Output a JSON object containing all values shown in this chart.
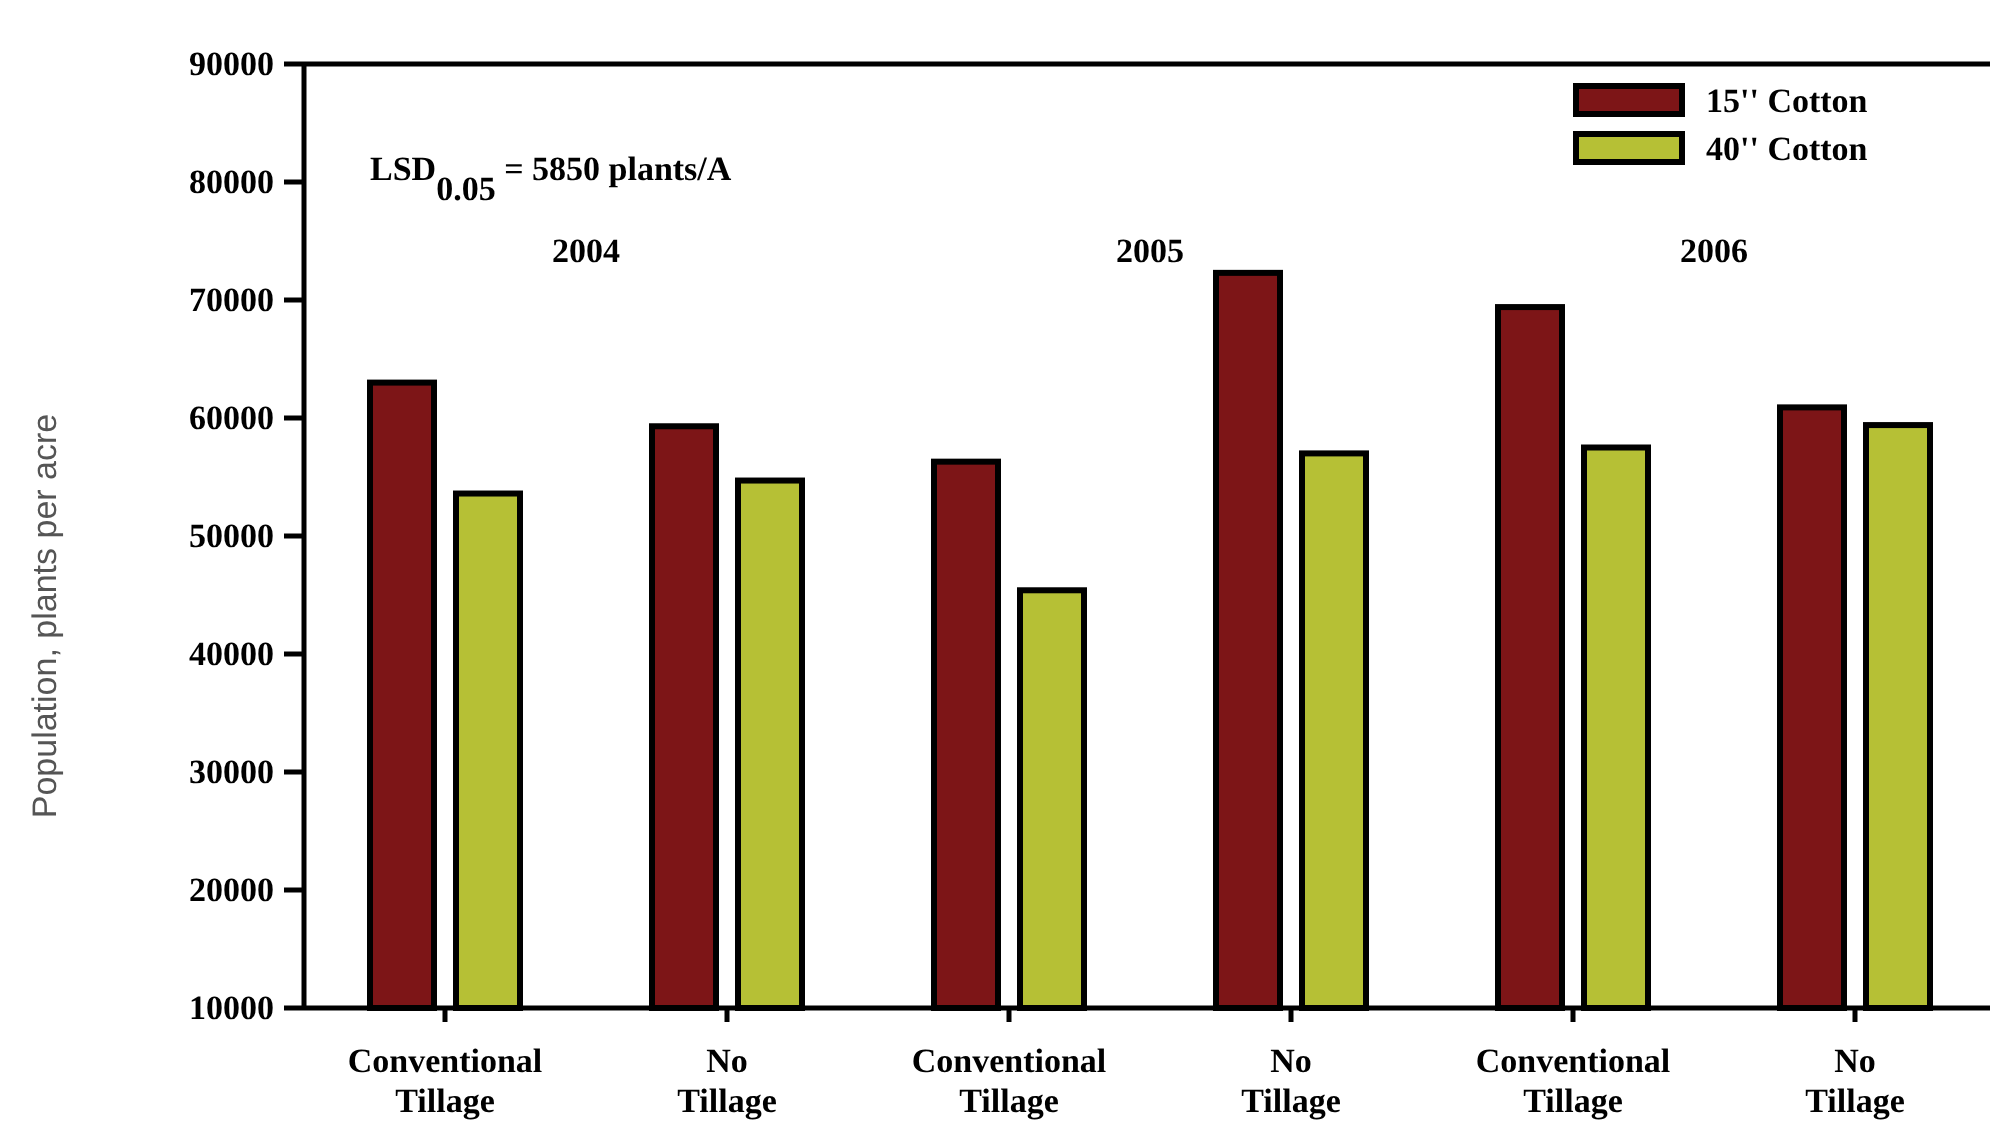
{
  "chart_data": {
    "type": "bar",
    "ylabel": "Population, plants per acre",
    "categories": [
      "Conventional Tillage",
      "No Tillage",
      "Conventional Tillage",
      "No Tillage",
      "Conventional Tillage",
      "No Tillage"
    ],
    "series": [
      {
        "name": "15'' Cotton",
        "color": "#7d1517",
        "values": [
          63000,
          59300,
          56300,
          72300,
          69400,
          60900
        ]
      },
      {
        "name": "40'' Cotton",
        "color": "#b6c035",
        "values": [
          53600,
          54700,
          45400,
          57000,
          57500,
          59400
        ]
      }
    ],
    "ylim": [
      10000,
      90000
    ],
    "yticks": [
      10000,
      20000,
      30000,
      40000,
      50000,
      60000,
      70000,
      80000,
      90000
    ],
    "annotations": [
      "LSD$_{0.05}$ = 5850 plants/A",
      "2004",
      "2005",
      "2006"
    ],
    "legend": "top right",
    "grid": false
  }
}
